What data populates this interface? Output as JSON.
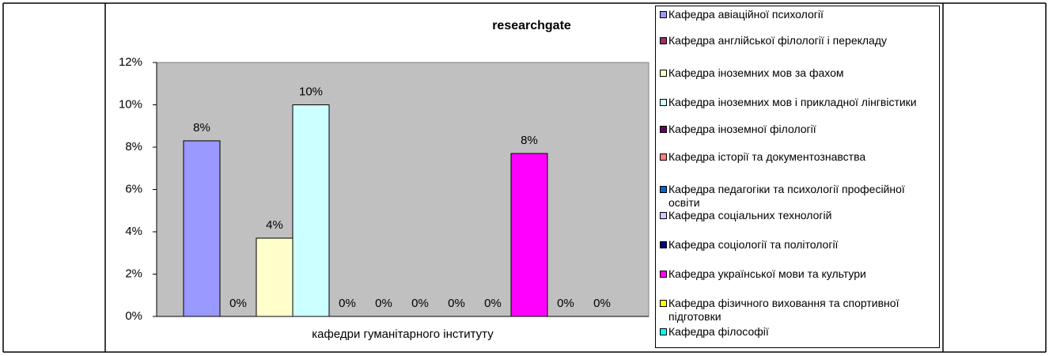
{
  "chart_data": {
    "type": "bar",
    "title": "researchgate",
    "x_label": "кафедри гуманітарного інституту",
    "categories": [
      "кафедри гуманітарного інституту"
    ],
    "ylim": [
      0,
      12
    ],
    "yticks": [
      {
        "value": 0,
        "label": "0%"
      },
      {
        "value": 2,
        "label": "2%"
      },
      {
        "value": 4,
        "label": "4%"
      },
      {
        "value": 6,
        "label": "6%"
      },
      {
        "value": 8,
        "label": "8%"
      },
      {
        "value": 10,
        "label": "10%"
      },
      {
        "value": 12,
        "label": "12%"
      }
    ],
    "series": [
      {
        "name": "Кафедра авіаційної психології",
        "color": "#9999ff",
        "values": [
          8.3
        ],
        "value_labels": [
          "8%"
        ]
      },
      {
        "name": "Кафедра англійської філології і перекладу",
        "color": "#993366",
        "values": [
          0
        ],
        "value_labels": [
          "0%"
        ]
      },
      {
        "name": "Кафедра іноземних мов за фахом",
        "color": "#ffffcc",
        "values": [
          3.7
        ],
        "value_labels": [
          "4%"
        ]
      },
      {
        "name": "Кафедра іноземних мов і прикладної лінгвістики",
        "color": "#ccffff",
        "values": [
          10
        ],
        "value_labels": [
          "10%"
        ]
      },
      {
        "name": "Кафедра іноземної філології",
        "color": "#660066",
        "values": [
          0
        ],
        "value_labels": [
          "0%"
        ]
      },
      {
        "name": "Кафедра історії та документознавства",
        "color": "#ff8080",
        "values": [
          0
        ],
        "value_labels": [
          "0%"
        ]
      },
      {
        "name": "Кафедра педагогіки та психології професійної освіти",
        "color": "#0066cc",
        "values": [
          0
        ],
        "value_labels": [
          "0%"
        ]
      },
      {
        "name": "Кафедра соціальних технологій",
        "color": "#ccccff",
        "values": [
          0
        ],
        "value_labels": [
          "0%"
        ]
      },
      {
        "name": "Кафедра соціології та політології",
        "color": "#000080",
        "values": [
          0
        ],
        "value_labels": [
          "0%"
        ]
      },
      {
        "name": "Кафедра української мови та культури",
        "color": "#ff00ff",
        "values": [
          7.7
        ],
        "value_labels": [
          "8%"
        ]
      },
      {
        "name": "Кафедра фізичного виховання та спортивної підготовки",
        "color": "#ffff00",
        "values": [
          0
        ],
        "value_labels": [
          "0%"
        ]
      },
      {
        "name": "Кафедра філософії",
        "color": "#00ffff",
        "values": [
          0
        ],
        "value_labels": [
          "0%"
        ]
      }
    ]
  }
}
